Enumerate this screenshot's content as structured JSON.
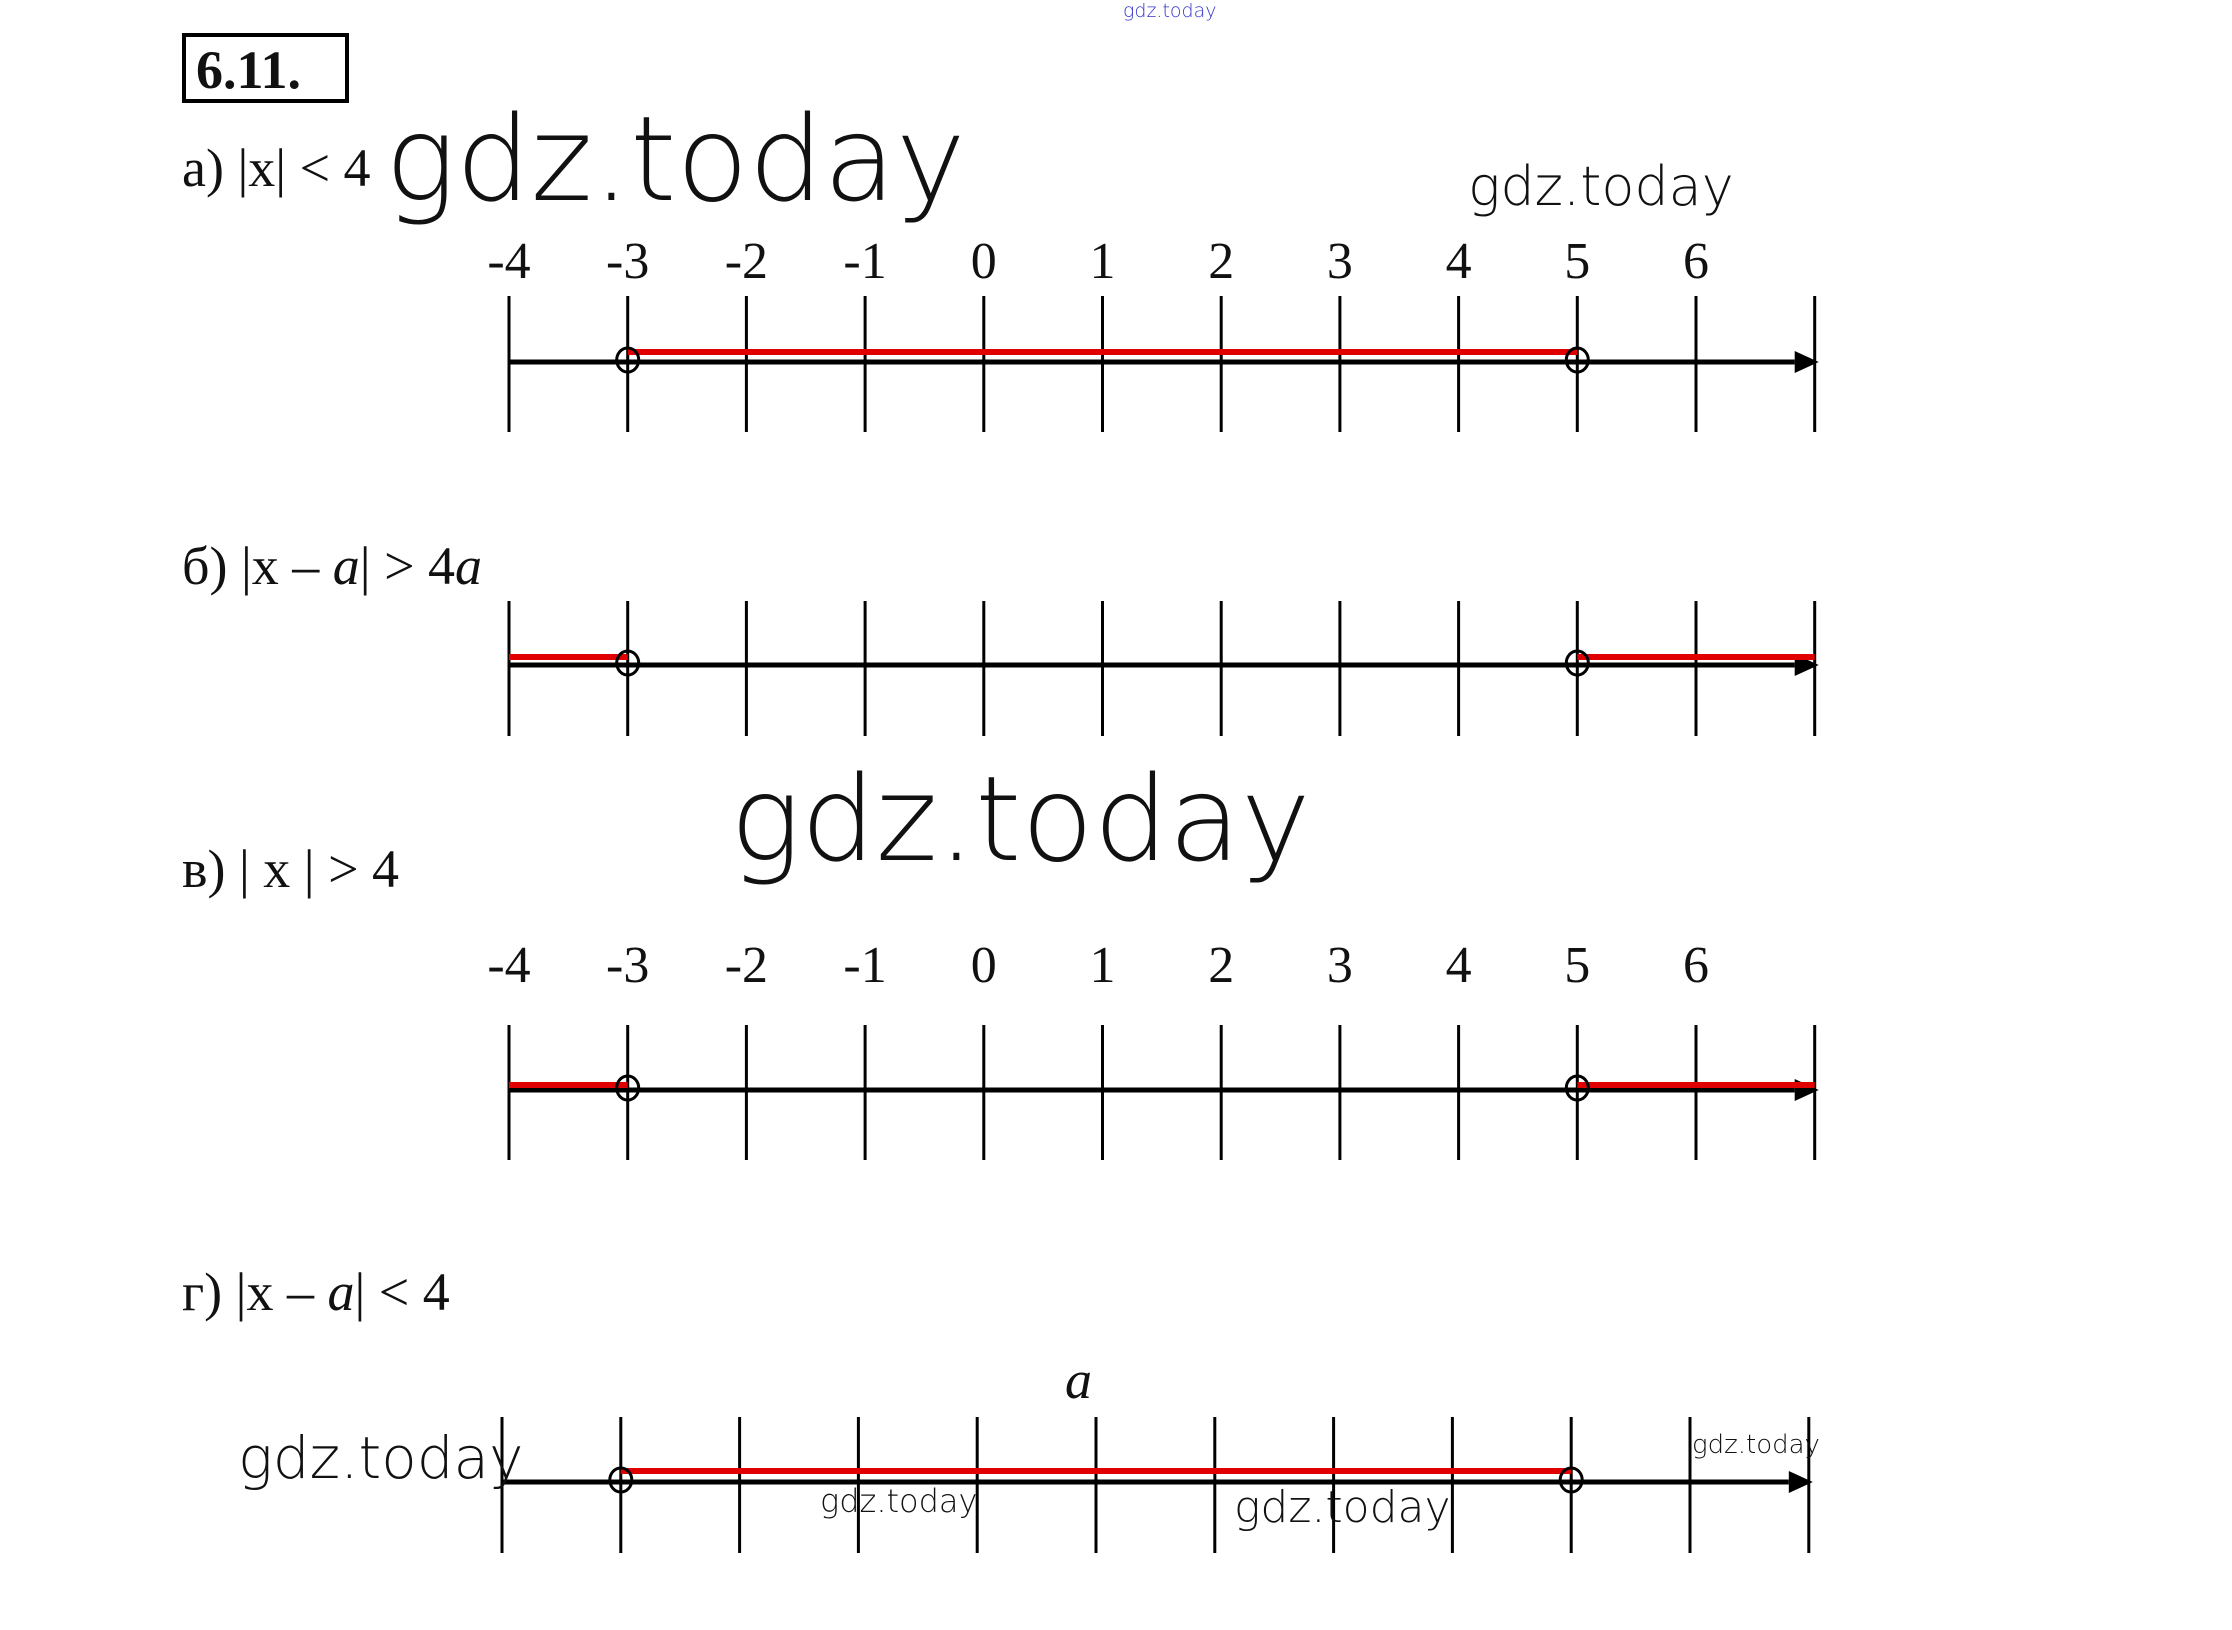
{
  "header": {
    "problem_number": "6.11.",
    "top_watermark": "gdz.today",
    "top_watermark_color": "#3333cc"
  },
  "parts": [
    {
      "label": "а) |x| < 4",
      "tick_labels": [
        "-4",
        "-3",
        "-2",
        "-1",
        "0",
        "1",
        "2",
        "3",
        "4",
        "5",
        "6",
        ""
      ],
      "shaded": [
        [
          -3,
          5
        ]
      ],
      "open_points": [
        -3,
        5
      ]
    },
    {
      "label_prefix": "б) |x – ",
      "label_a": "a",
      "label_mid": "| > 4",
      "label_a2": "a",
      "tick_labels": [],
      "shaded": [
        [
          -4,
          -3
        ],
        [
          5,
          7
        ]
      ],
      "open_points": [
        -3,
        5
      ]
    },
    {
      "label": "в) | x | > 4",
      "tick_labels": [
        "-4",
        "-3",
        "-2",
        "-1",
        "0",
        "1",
        "2",
        "3",
        "4",
        "5",
        "6",
        ""
      ],
      "shaded": [
        [
          -4,
          -3
        ],
        [
          5,
          7
        ]
      ],
      "open_points": [
        -3,
        5
      ]
    },
    {
      "label_prefix": "г) |x – ",
      "label_a": "a",
      "label_mid": "| < 4",
      "center_label": "a",
      "tick_labels": [],
      "shaded": [
        [
          -3,
          5
        ]
      ],
      "open_points": [
        -3,
        5
      ]
    }
  ],
  "watermarks": [
    "gdz.today",
    "gdz.today",
    "gdz.today",
    "gdz.today",
    "gdz.today",
    "gdz.today",
    "gdz.today"
  ],
  "colors": {
    "axis": "#000000",
    "shaded": "#e00000"
  }
}
